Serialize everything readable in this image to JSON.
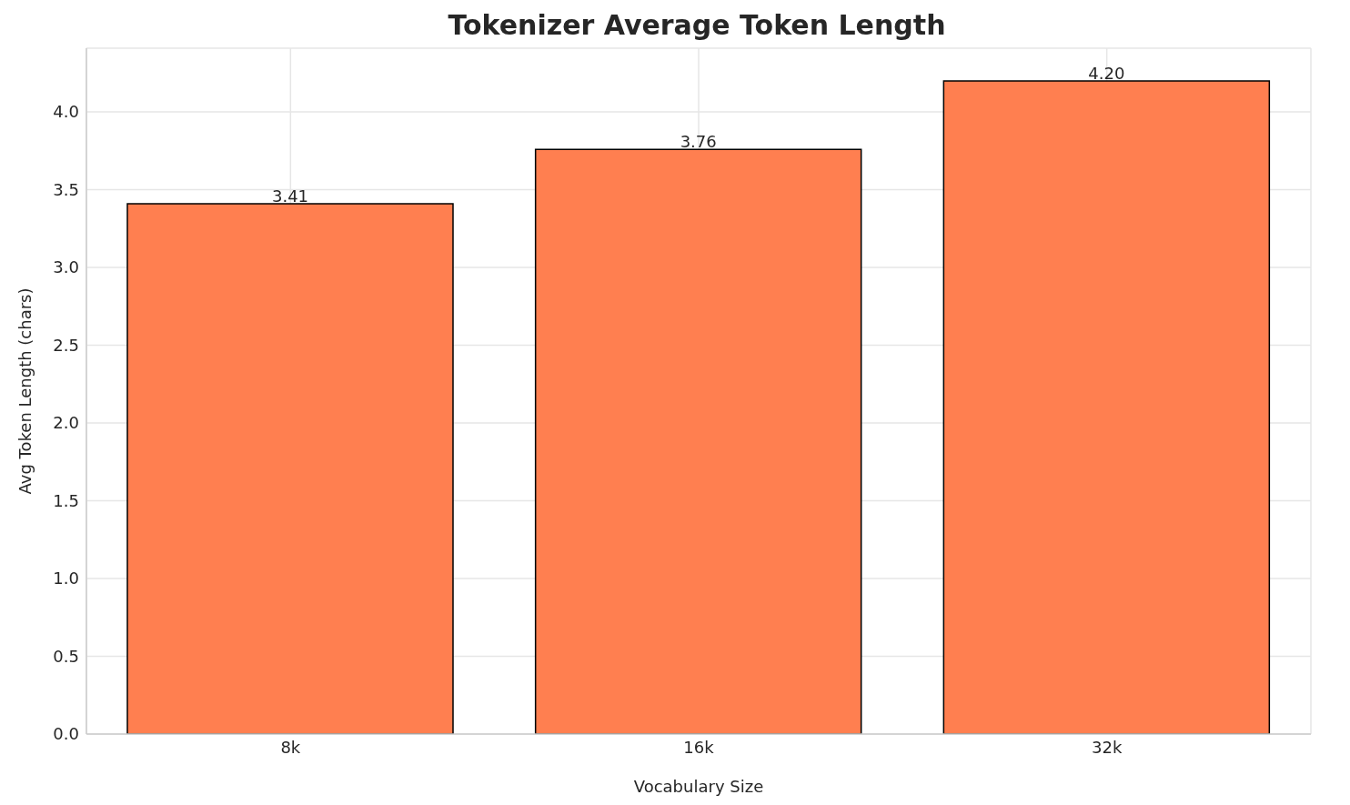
{
  "chart_data": {
    "type": "bar",
    "title": "Tokenizer Average Token Length",
    "xlabel": "Vocabulary Size",
    "ylabel": "Avg Token Length (chars)",
    "categories": [
      "8k",
      "16k",
      "32k"
    ],
    "values": [
      3.41,
      3.76,
      4.2
    ],
    "color": "#ff7f50",
    "value_labels": [
      "3.41",
      "3.76",
      "4.20"
    ],
    "ylim": [
      0,
      4.41
    ],
    "yticks": [
      {
        "value": 0,
        "label": "0.0"
      },
      0.5,
      {
        "value": 1,
        "label": "1.0"
      },
      1.5,
      {
        "value": 2,
        "label": "2.0"
      },
      2.5,
      {
        "value": 3,
        "label": "3.0"
      },
      3.5,
      {
        "value": 4,
        "label": "4.0"
      }
    ],
    "grid": true
  }
}
